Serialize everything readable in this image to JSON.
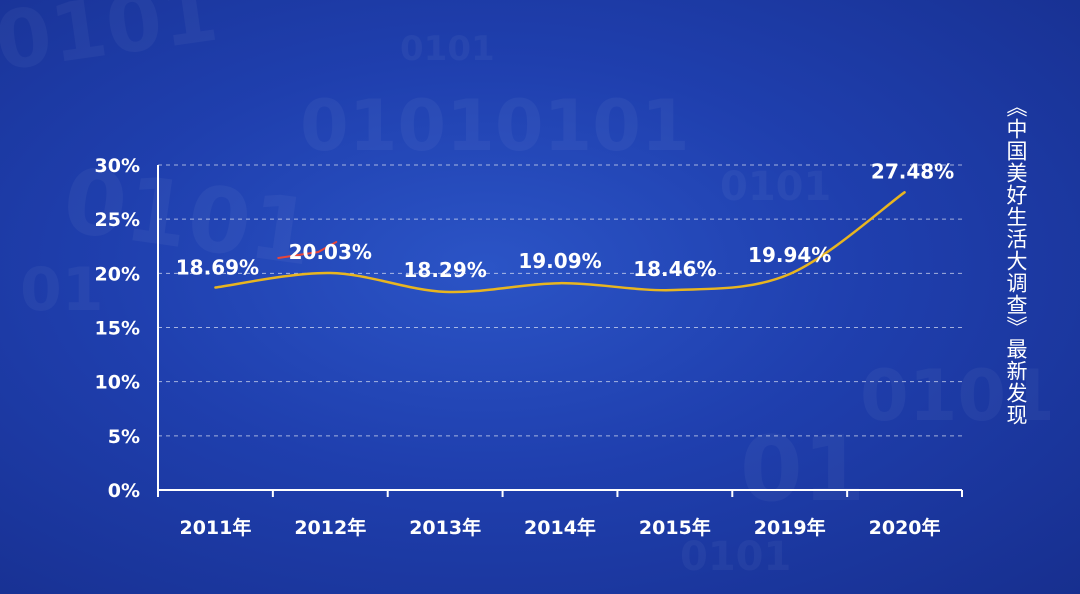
{
  "caption": "《中国美好生活大调查》最新发现",
  "chart_data": {
    "type": "line",
    "title": "",
    "xlabel": "",
    "ylabel": "",
    "categories": [
      "2011年",
      "2012年",
      "2013年",
      "2014年",
      "2015年",
      "2019年",
      "2020年"
    ],
    "values": [
      18.69,
      20.03,
      18.29,
      19.09,
      18.46,
      19.94,
      27.48
    ],
    "data_labels": [
      "18.69%",
      "20.03%",
      "18.29%",
      "19.09%",
      "18.46%",
      "19.94%",
      "27.48%"
    ],
    "ylim": [
      0,
      30
    ],
    "yticks": [
      0,
      5,
      10,
      15,
      20,
      25,
      30
    ],
    "ytick_labels": [
      "0%",
      "5%",
      "10%",
      "15%",
      "20%",
      "25%",
      "30%"
    ],
    "grid": true,
    "line_color": "#e8b520",
    "accent_color": "#e8463a"
  }
}
